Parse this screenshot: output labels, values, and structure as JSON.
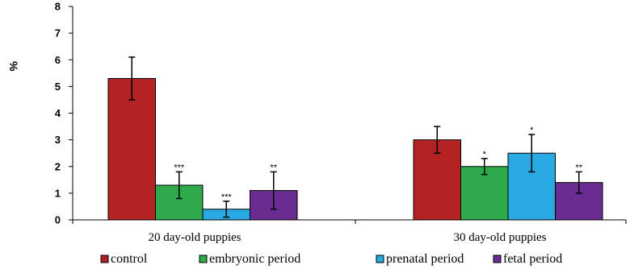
{
  "chart_data": {
    "type": "bar",
    "title": "",
    "xlabel": "",
    "ylabel": "%",
    "ylim": [
      0,
      8
    ],
    "yticks": [
      0,
      1,
      2,
      3,
      4,
      5,
      6,
      7,
      8
    ],
    "categories": [
      "20 day-old puppies",
      "30 day-old puppies"
    ],
    "legend_position": "bottom",
    "grid": false,
    "series": [
      {
        "name": "control",
        "color": "#b22222",
        "values": [
          5.3,
          3.0
        ],
        "errors": [
          0.8,
          0.5
        ],
        "significance": [
          "",
          ""
        ]
      },
      {
        "name": "embryonic period",
        "color": "#2eaa4a",
        "values": [
          1.3,
          2.0
        ],
        "errors": [
          0.5,
          0.3
        ],
        "significance": [
          "***",
          "*"
        ]
      },
      {
        "name": "prenatal period",
        "color": "#29a9e1",
        "values": [
          0.4,
          2.5
        ],
        "errors": [
          0.3,
          0.7
        ],
        "significance": [
          "***",
          "*"
        ]
      },
      {
        "name": "fetal period",
        "color": "#6a2c91",
        "values": [
          1.1,
          1.4
        ],
        "errors": [
          0.7,
          0.4
        ],
        "significance": [
          "**",
          "**"
        ]
      }
    ]
  }
}
